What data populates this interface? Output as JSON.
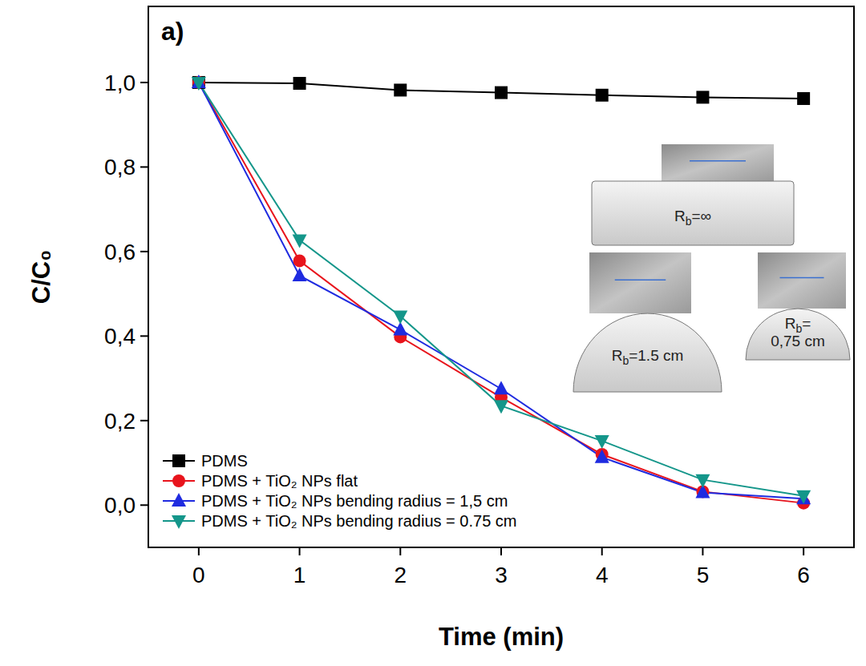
{
  "chart_data": {
    "type": "line",
    "x_label": "Time (min)",
    "y_label": "C/C₀",
    "annotations": [
      "a)",
      "Rb=∞",
      "Rb=1.5 cm",
      "Rb= 0,75 cm"
    ],
    "x": [
      0,
      1,
      2,
      3,
      4,
      5,
      6
    ],
    "series": [
      {
        "name": "PDMS",
        "color": "#000000",
        "marker": "square",
        "values": [
          1.0,
          0.998,
          0.982,
          0.976,
          0.97,
          0.965,
          0.962
        ]
      },
      {
        "name": "PDMS + TiO₂ NPs flat",
        "color": "#e8141c",
        "marker": "circle",
        "values": [
          1.0,
          0.578,
          0.398,
          0.255,
          0.12,
          0.032,
          0.005
        ]
      },
      {
        "name": "PDMS + TiO₂ NPs bending radius = 1,5 cm",
        "color": "#1f2be0",
        "marker": "triangle",
        "values": [
          1.0,
          0.543,
          0.415,
          0.275,
          0.113,
          0.03,
          0.015
        ]
      },
      {
        "name": "PDMS + TiO₂ NPs bending radius = 0.75 cm",
        "color": "#14968a",
        "marker": "triangle-down",
        "values": [
          1.0,
          0.627,
          0.447,
          0.235,
          0.152,
          0.06,
          0.022
        ]
      }
    ],
    "xlim": [
      -0.5,
      6.5
    ],
    "ylim": [
      -0.1,
      1.18
    ],
    "xticks": [
      0,
      1,
      2,
      3,
      4,
      5,
      6
    ],
    "yticks": [
      {
        "value": 0,
        "label": "0,0"
      },
      {
        "value": 0.2,
        "label": "0,2"
      },
      {
        "value": 0.4,
        "label": "0,4"
      },
      {
        "value": 0.6,
        "label": "0,6"
      },
      {
        "value": 0.8,
        "label": "0,8"
      },
      {
        "value": 1.0,
        "label": "1,0"
      }
    ],
    "grid": false,
    "legend": "bottom-left"
  }
}
